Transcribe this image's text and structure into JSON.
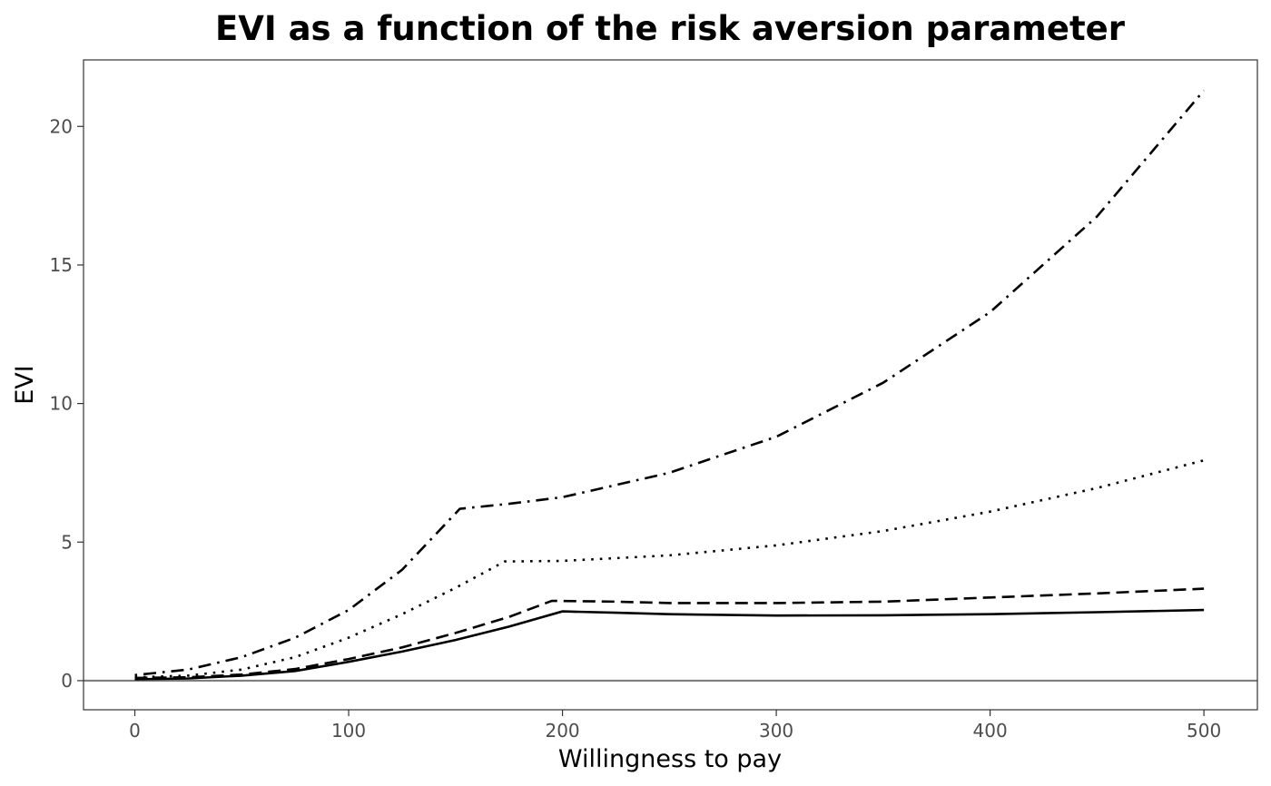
{
  "chart_data": {
    "type": "line",
    "title": "EVI as a function of the risk aversion parameter",
    "xlabel": "Willingness to pay",
    "ylabel": "EVI",
    "xlim": [
      -24,
      525
    ],
    "ylim": [
      -1.05,
      22.4
    ],
    "x_ticks": [
      0,
      100,
      200,
      300,
      400,
      500
    ],
    "y_ticks": [
      0,
      5,
      10,
      15,
      20
    ],
    "grid": false,
    "legend": "none",
    "reference_line_y": 0,
    "series": [
      {
        "linetype": "solid",
        "points": [
          [
            0,
            0.05
          ],
          [
            25,
            0.08
          ],
          [
            50,
            0.18
          ],
          [
            75,
            0.35
          ],
          [
            100,
            0.68
          ],
          [
            125,
            1.05
          ],
          [
            150,
            1.47
          ],
          [
            175,
            1.95
          ],
          [
            200,
            2.5
          ],
          [
            225,
            2.45
          ],
          [
            250,
            2.4
          ],
          [
            300,
            2.35
          ],
          [
            350,
            2.36
          ],
          [
            400,
            2.4
          ],
          [
            450,
            2.47
          ],
          [
            500,
            2.55
          ]
        ]
      },
      {
        "linetype": "dashed",
        "points": [
          [
            0,
            0.1
          ],
          [
            25,
            0.12
          ],
          [
            50,
            0.22
          ],
          [
            75,
            0.42
          ],
          [
            100,
            0.78
          ],
          [
            125,
            1.2
          ],
          [
            150,
            1.72
          ],
          [
            175,
            2.3
          ],
          [
            195,
            2.88
          ],
          [
            225,
            2.85
          ],
          [
            250,
            2.8
          ],
          [
            300,
            2.8
          ],
          [
            350,
            2.85
          ],
          [
            400,
            3.0
          ],
          [
            450,
            3.15
          ],
          [
            500,
            3.32
          ]
        ]
      },
      {
        "linetype": "dotted",
        "points": [
          [
            0,
            0.12
          ],
          [
            25,
            0.18
          ],
          [
            50,
            0.4
          ],
          [
            75,
            0.85
          ],
          [
            100,
            1.55
          ],
          [
            125,
            2.4
          ],
          [
            150,
            3.35
          ],
          [
            173,
            4.3
          ],
          [
            200,
            4.32
          ],
          [
            250,
            4.52
          ],
          [
            300,
            4.88
          ],
          [
            350,
            5.4
          ],
          [
            400,
            6.1
          ],
          [
            450,
            6.95
          ],
          [
            500,
            7.95
          ]
        ]
      },
      {
        "linetype": "dotdash",
        "points": [
          [
            0,
            0.2
          ],
          [
            25,
            0.4
          ],
          [
            50,
            0.85
          ],
          [
            75,
            1.55
          ],
          [
            100,
            2.55
          ],
          [
            125,
            4.0
          ],
          [
            152,
            6.2
          ],
          [
            175,
            6.38
          ],
          [
            200,
            6.62
          ],
          [
            250,
            7.5
          ],
          [
            300,
            8.8
          ],
          [
            350,
            10.75
          ],
          [
            400,
            13.3
          ],
          [
            450,
            16.75
          ],
          [
            500,
            21.3
          ]
        ]
      }
    ]
  }
}
